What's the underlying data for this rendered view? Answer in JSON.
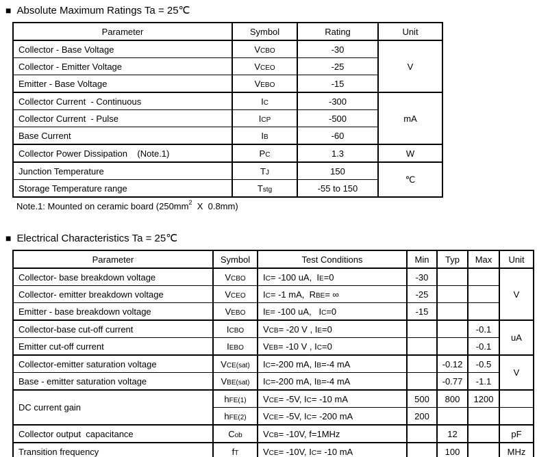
{
  "abs_max": {
    "bullet": "■",
    "title": "Absolute Maximum Ratings Ta = 25℃",
    "headers": {
      "parameter": "Parameter",
      "symbol": "Symbol",
      "rating": "Rating",
      "unit": "Unit"
    },
    "rows": [
      {
        "param": "Collector - Base Voltage",
        "symbol": "V~CBO~",
        "rating": "-30"
      },
      {
        "param": "Collector - Emitter Voltage",
        "symbol": "V~CEO~",
        "rating": "-25"
      },
      {
        "param": "Emitter - Base Voltage",
        "symbol": "V~EBO~",
        "rating": "-15"
      },
      {
        "param": "Collector Current  - Continuous",
        "symbol": "I~C~",
        "rating": "-300"
      },
      {
        "param": "Collector Current  - Pulse",
        "symbol": "I~CP~",
        "rating": "-500"
      },
      {
        "param": "Base Current",
        "symbol": "I~B~",
        "rating": "-60"
      },
      {
        "param": "Collector Power Dissipation    (Note.1)",
        "symbol": "P~C~",
        "rating": "1.3"
      },
      {
        "param": "Junction Temperature",
        "symbol": "T~J~",
        "rating": "150"
      },
      {
        "param": "Storage Temperature range",
        "symbol": "T~stg~",
        "rating": "-55 to 150"
      }
    ],
    "units": {
      "volts": "V",
      "milliamps": "mA",
      "watts": "W",
      "celsius": "℃"
    },
    "note": "Note.1: Mounted on ceramic board (250mm^2^  X  0.8mm)"
  },
  "elec": {
    "bullet": "■",
    "title": "Electrical Characteristics Ta = 25℃",
    "headers": {
      "parameter": "Parameter",
      "symbol": "Symbol",
      "conditions": "Test Conditions",
      "min": "Min",
      "typ": "Typ",
      "max": "Max",
      "unit": "Unit"
    },
    "rows": [
      {
        "param": "Collector- base breakdown voltage",
        "symbol": "V~CBO~",
        "cond": "I~C~= -100 uA,  I~E~=0",
        "min": "-30",
        "typ": "",
        "max": ""
      },
      {
        "param": "Collector- emitter breakdown voltage",
        "symbol": "V~CEO~",
        "cond": "I~C~= -1 mA,  R~BE~= ∞",
        "min": "-25",
        "typ": "",
        "max": ""
      },
      {
        "param": "Emitter - base breakdown voltage",
        "symbol": "V~EBO~",
        "cond": "I~E~= -100 uA,   I~C~=0",
        "min": "-15",
        "typ": "",
        "max": ""
      },
      {
        "param": "Collector-base cut-off current",
        "symbol": "I~CBO~",
        "cond": "V~CB~= -20 V , I~E~=0",
        "min": "",
        "typ": "",
        "max": "-0.1"
      },
      {
        "param": "Emitter cut-off current",
        "symbol": "I~EBO~",
        "cond": "V~EB~= -10 V , I~C~=0",
        "min": "",
        "typ": "",
        "max": "-0.1"
      },
      {
        "param": "Collector-emitter saturation voltage",
        "symbol": "V~CE(sat)~",
        "cond": "I~C~=-200 mA, I~B~=-4 mA",
        "min": "",
        "typ": "-0.12",
        "max": "-0.5"
      },
      {
        "param": "Base - emitter saturation voltage",
        "symbol": "V~BE(sat)~",
        "cond": "I~C~=-200 mA, I~B~=-4 mA",
        "min": "",
        "typ": "-0.77",
        "max": "-1.1"
      },
      {
        "param": "DC current gain",
        "symbol": "h~FE(1)~",
        "cond": "V~CE~= -5V, I~C~= -10 mA",
        "min": "500",
        "typ": "800",
        "max": "1200",
        "unit": ""
      },
      {
        "param": "",
        "symbol": "h~FE(2)~",
        "cond": "V~CE~= -5V, I~C~= -200 mA",
        "min": "200",
        "typ": "",
        "max": "",
        "unit": ""
      },
      {
        "param": "Collector output  capacitance",
        "symbol": "C~ob~",
        "cond": "V~CB~= -10V, f=1MHz",
        "min": "",
        "typ": "12",
        "max": "",
        "unit": "pF"
      },
      {
        "param": "Transition frequency",
        "symbol": "f~T~",
        "cond": "V~CE~= -10V, I~C~= -10 mA",
        "min": "",
        "typ": "100",
        "max": "",
        "unit": "MHz"
      }
    ],
    "units": {
      "breakdown_volts": "V",
      "microamps": "uA",
      "saturation_volts": "V"
    }
  }
}
